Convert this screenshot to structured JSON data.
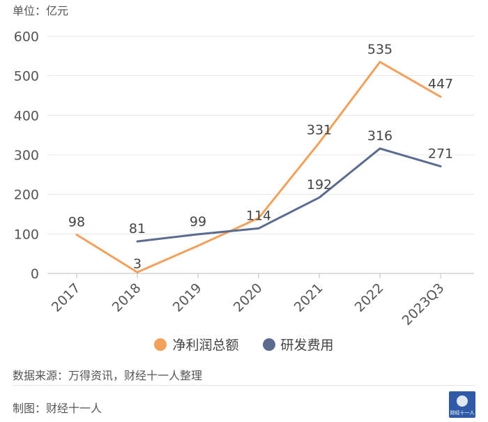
{
  "unit_label": "单位：亿元",
  "source_text": "数据来源：万得资讯，财经十一人整理",
  "maker_text": "制图：财经十一人",
  "logo_text": "财经十一人",
  "legend": [
    {
      "name": "净利润总额",
      "color": "#f2a05a"
    },
    {
      "name": "研发费用",
      "color": "#5b6a8f"
    }
  ],
  "chart_data": {
    "type": "line",
    "categories": [
      "2017",
      "2018",
      "2019",
      "2020",
      "2021",
      "2022",
      "2023Q3"
    ],
    "ylim": [
      0,
      600
    ],
    "yticks": [
      0,
      100,
      200,
      300,
      400,
      500,
      600
    ],
    "grid": true,
    "legend_position": "bottom",
    "series": [
      {
        "name": "净利润总额",
        "color": "#f2a05a",
        "values": [
          98,
          3,
          70,
          140,
          331,
          535,
          447
        ],
        "labels": [
          "98",
          "3",
          "",
          "",
          "331",
          "535",
          "447"
        ]
      },
      {
        "name": "研发费用",
        "color": "#5b6a8f",
        "values": [
          null,
          81,
          99,
          114,
          192,
          316,
          271
        ],
        "labels": [
          "",
          "81",
          "99",
          "114",
          "192",
          "316",
          "271"
        ]
      }
    ]
  }
}
